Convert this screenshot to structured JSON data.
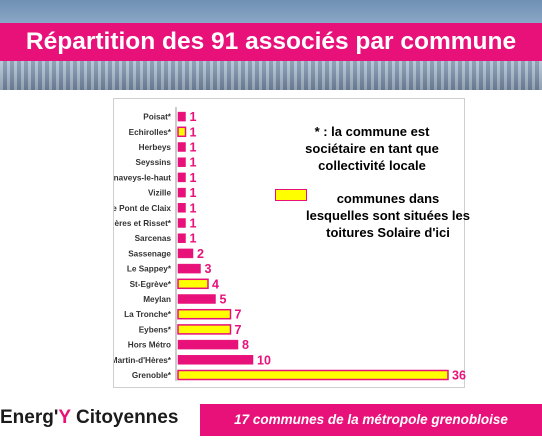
{
  "title": "Répartition des 91 associés par commune",
  "note": "* : la commune est sociétaire en tant que collectivité locale",
  "legend": {
    "label": "communes dans lesquelles sont situées les toitures Solaire d'ici",
    "highlight_fill": "#ffff00"
  },
  "footer": {
    "brand_part1": "Energ'",
    "brand_part2": "Y",
    "brand_part3": " Citoyennes",
    "tagline": "17 communes de la métropole grenobloise"
  },
  "colors": {
    "accent": "#e8117a",
    "highlight": "#ffff00"
  },
  "chart_data": {
    "type": "bar",
    "orientation": "horizontal",
    "categories": [
      "Poisat*",
      "Echirolles*",
      "Herbeys",
      "Seyssins",
      "Vaulnaveys-le-haut",
      "Vizille",
      "Le Pont de Claix",
      "Varces Allières et Risset*",
      "Sarcenas",
      "Sassenage",
      "Le Sappey*",
      "St-Egrève*",
      "Meylan",
      "La Tronche*",
      "Eybens*",
      "Hors Métro",
      "St-Martin-d'Hères*",
      "Grenoble*"
    ],
    "values": [
      1,
      1,
      1,
      1,
      1,
      1,
      1,
      1,
      1,
      2,
      3,
      4,
      5,
      7,
      7,
      8,
      10,
      36
    ],
    "highlighted": [
      false,
      true,
      false,
      false,
      false,
      false,
      false,
      false,
      false,
      false,
      false,
      true,
      false,
      true,
      true,
      false,
      false,
      true
    ],
    "data_labels": [
      "1",
      "1",
      "1",
      "1",
      "1",
      "1",
      "1",
      "1",
      "1",
      "2",
      "3",
      "4",
      "5",
      "7",
      "7",
      "8",
      "10",
      "36"
    ],
    "xlim": [
      0,
      36
    ],
    "grid": false
  }
}
